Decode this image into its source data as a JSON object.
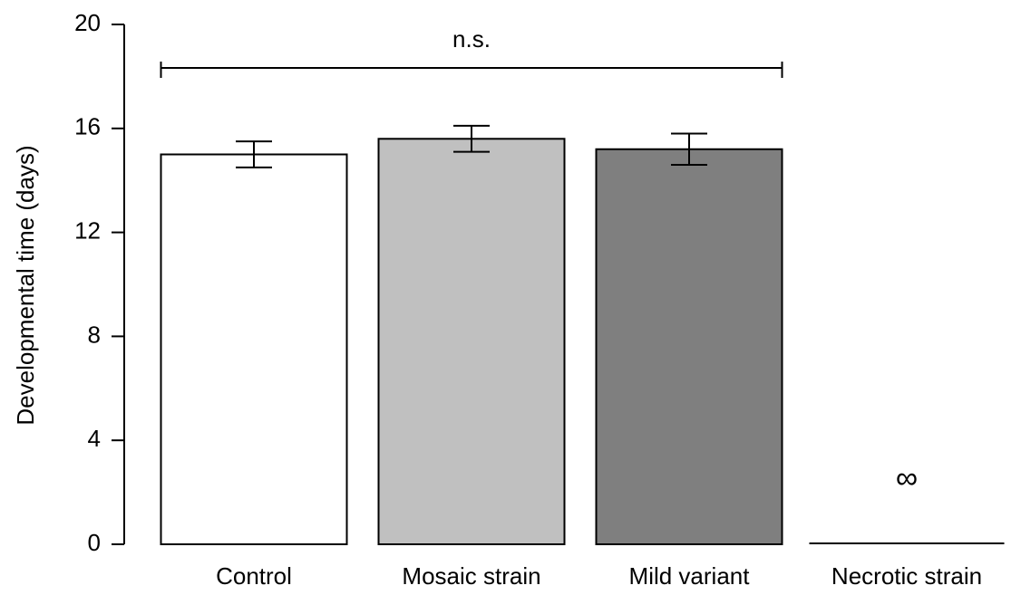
{
  "chart_data": {
    "type": "bar",
    "y_label": "Developmental time (days)",
    "categories": [
      "Control",
      "Mosaic strain",
      "Mild variant",
      "Necrotic strain"
    ],
    "values": [
      15.0,
      15.6,
      15.2,
      null
    ],
    "errors": [
      0.5,
      0.5,
      0.6,
      null
    ],
    "colors": [
      "#ffffff",
      "#c0c0c0",
      "#7f7f7f",
      "#ffffff"
    ],
    "ylim": [
      0,
      20
    ],
    "yticks": [
      0,
      4,
      8,
      12,
      16,
      20
    ],
    "significance_label": "n.s.",
    "infinite_label": "∞"
  }
}
